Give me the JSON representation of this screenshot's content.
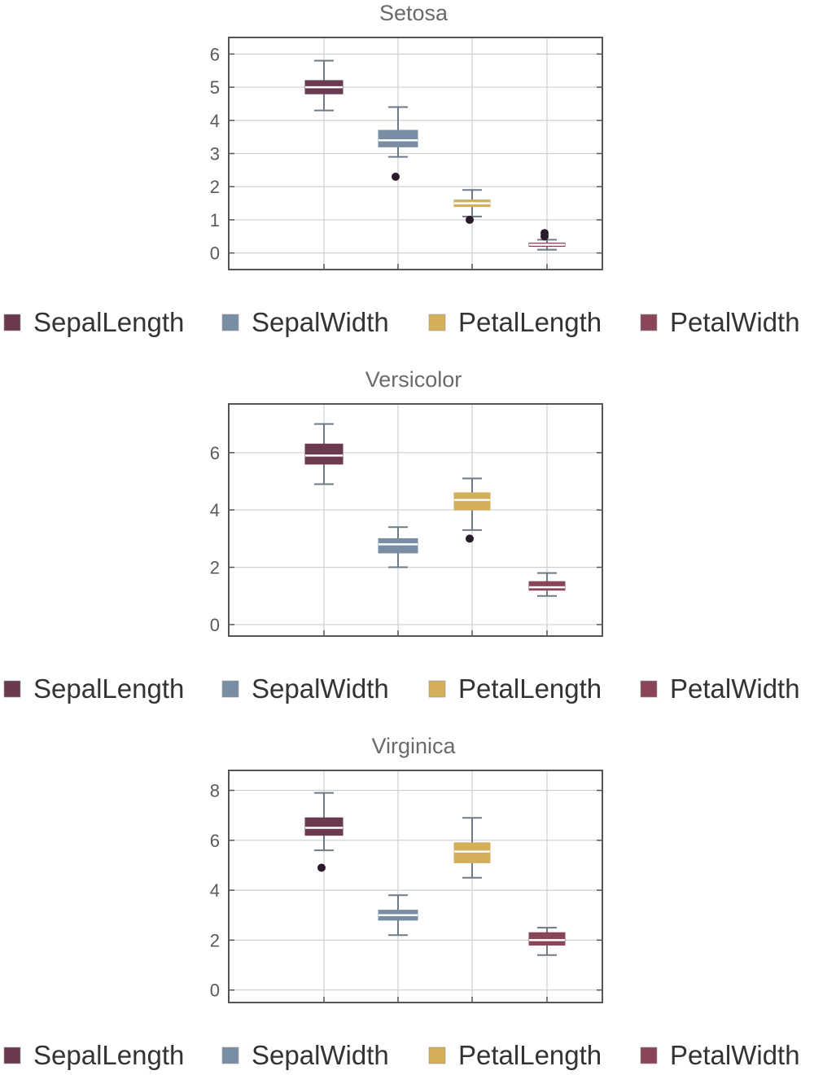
{
  "chart_data": [
    {
      "type": "box",
      "title": "Setosa",
      "ylim": [
        -0.5,
        6.5
      ],
      "yticks": [
        "0",
        "1",
        "2",
        "3",
        "4",
        "5",
        "6"
      ],
      "tickValues": [
        0,
        1,
        2,
        3,
        4,
        5,
        6
      ],
      "grid": true,
      "legend_position": "bottom",
      "series": [
        {
          "name": "SepalLength",
          "min": 4.3,
          "q1": 4.8,
          "median": 5.0,
          "q3": 5.2,
          "max": 5.8,
          "outliers": []
        },
        {
          "name": "SepalWidth",
          "min": 2.9,
          "q1": 3.2,
          "median": 3.4,
          "q3": 3.7,
          "max": 4.4,
          "outliers": [
            2.3
          ]
        },
        {
          "name": "PetalLength",
          "min": 1.1,
          "q1": 1.4,
          "median": 1.5,
          "q3": 1.6,
          "max": 1.9,
          "outliers": [
            1.0
          ]
        },
        {
          "name": "PetalWidth",
          "min": 0.1,
          "q1": 0.2,
          "median": 0.25,
          "q3": 0.3,
          "max": 0.4,
          "outliers": [
            0.5,
            0.6
          ]
        }
      ]
    },
    {
      "type": "box",
      "title": "Versicolor",
      "ylim": [
        -0.4,
        7.7
      ],
      "yticks": [
        "0",
        "2",
        "4",
        "6"
      ],
      "tickValues": [
        0,
        2,
        4,
        6
      ],
      "grid": true,
      "legend_position": "bottom",
      "series": [
        {
          "name": "SepalLength",
          "min": 4.9,
          "q1": 5.6,
          "median": 5.9,
          "q3": 6.3,
          "max": 7.0,
          "outliers": []
        },
        {
          "name": "SepalWidth",
          "min": 2.0,
          "q1": 2.5,
          "median": 2.8,
          "q3": 3.0,
          "max": 3.4,
          "outliers": []
        },
        {
          "name": "PetalLength",
          "min": 3.3,
          "q1": 4.0,
          "median": 4.35,
          "q3": 4.6,
          "max": 5.1,
          "outliers": [
            3.0
          ]
        },
        {
          "name": "PetalWidth",
          "min": 1.0,
          "q1": 1.2,
          "median": 1.3,
          "q3": 1.5,
          "max": 1.8,
          "outliers": []
        }
      ]
    },
    {
      "type": "box",
      "title": "Virginica",
      "ylim": [
        -0.5,
        8.8
      ],
      "yticks": [
        "0",
        "2",
        "4",
        "6",
        "8"
      ],
      "tickValues": [
        0,
        2,
        4,
        6,
        8
      ],
      "grid": true,
      "legend_position": "bottom",
      "series": [
        {
          "name": "SepalLength",
          "min": 5.6,
          "q1": 6.2,
          "median": 6.5,
          "q3": 6.9,
          "max": 7.9,
          "outliers": [
            4.9
          ]
        },
        {
          "name": "SepalWidth",
          "min": 2.2,
          "q1": 2.8,
          "median": 3.0,
          "q3": 3.2,
          "max": 3.8,
          "outliers": []
        },
        {
          "name": "PetalLength",
          "min": 4.5,
          "q1": 5.1,
          "median": 5.55,
          "q3": 5.9,
          "max": 6.9,
          "outliers": []
        },
        {
          "name": "PetalWidth",
          "min": 1.4,
          "q1": 1.8,
          "median": 2.0,
          "q3": 2.3,
          "max": 2.5,
          "outliers": []
        }
      ]
    }
  ],
  "legend": {
    "items": [
      "SepalLength",
      "SepalWidth",
      "PetalLength",
      "PetalWidth"
    ]
  },
  "colors": {
    "SepalLength": "#6b3a50",
    "SepalWidth": "#7a8ea3",
    "PetalLength": "#d3af5c",
    "PetalWidth": "#8a4558",
    "whisker": "#6f7a88",
    "outlier": "#2b1a2a",
    "frame": "#555555",
    "grid": "#cfcfcf",
    "title": "#6a6a6a",
    "tick": "#5a5a5a",
    "legend_text": "#333333"
  }
}
